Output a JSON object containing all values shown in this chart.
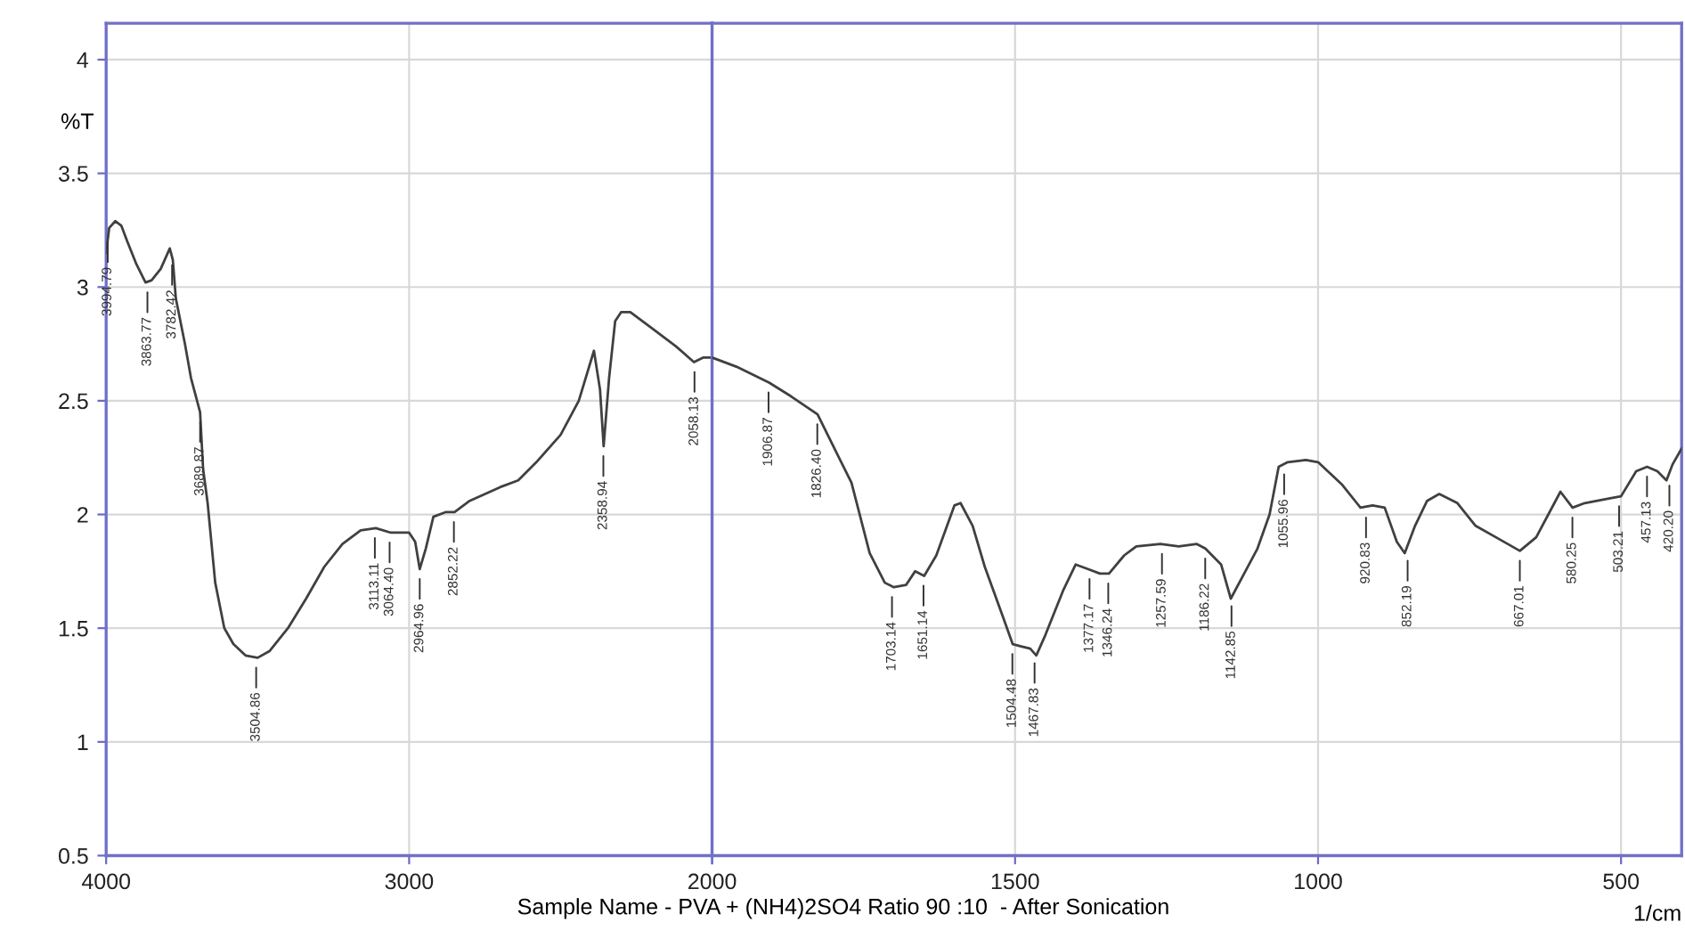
{
  "chart_data": [
    {
      "type": "line",
      "xlabel": "Sample Name - PVA + (NH4)2SO4 Ratio 90 :10  - After Sonication",
      "ylabel": "%T",
      "x": [
        4000,
        3990,
        3970,
        3950,
        3930,
        3900,
        3870,
        3850,
        3820,
        3790,
        3780,
        3770,
        3740,
        3720,
        3700,
        3690,
        3680,
        3665,
        3640,
        3610,
        3580,
        3540,
        3500,
        3460,
        3400,
        3340,
        3280,
        3220,
        3160,
        3110,
        3060,
        3000,
        2980,
        2965,
        2945,
        2920,
        2880,
        2850,
        2800,
        2700,
        2640,
        2580,
        2500,
        2440,
        2390,
        2370,
        2358,
        2340,
        2320,
        2300,
        2270,
        2200,
        2120,
        2060,
        2030,
        2000
      ],
      "series": [
        {
          "color": "#404040",
          "values": [
            3.15,
            3.26,
            3.29,
            3.27,
            3.2,
            3.1,
            3.02,
            3.03,
            3.08,
            3.17,
            3.12,
            2.95,
            2.75,
            2.6,
            2.5,
            2.45,
            2.2,
            2.05,
            1.7,
            1.5,
            1.43,
            1.38,
            1.37,
            1.4,
            1.5,
            1.63,
            1.77,
            1.87,
            1.93,
            1.94,
            1.92,
            1.92,
            1.88,
            1.76,
            1.85,
            1.99,
            2.01,
            2.01,
            2.06,
            2.12,
            2.15,
            2.23,
            2.35,
            2.5,
            2.72,
            2.55,
            2.3,
            2.6,
            2.85,
            2.89,
            2.89,
            2.82,
            2.74,
            2.67,
            2.69,
            2.69
          ]
        }
      ],
      "xlim": [
        4000,
        2000
      ],
      "xticks": [
        4000,
        3000,
        {
          "value": 2000,
          "label": null
        }
      ],
      "ylim": [
        0.5,
        4.16
      ],
      "yticks": [
        0.5,
        1,
        1.5,
        2,
        2.5,
        3,
        3.5,
        4
      ],
      "grid": true,
      "annotations": [
        {
          "text": "3994.79",
          "x": 3994.79,
          "y": 3.24
        },
        {
          "text": "3863.77",
          "x": 3863.77,
          "y": 3.02
        },
        {
          "text": "3782.42",
          "x": 3782.42,
          "y": 3.14
        },
        {
          "text": "3689.87",
          "x": 3689.87,
          "y": 2.45
        },
        {
          "text": "3504.86",
          "x": 3504.86,
          "y": 1.37
        },
        {
          "text": "3113.11",
          "x": 3113.11,
          "y": 1.94
        },
        {
          "text": "3064.40",
          "x": 3064.4,
          "y": 1.92
        },
        {
          "text": "2964.96",
          "x": 2964.96,
          "y": 1.76
        },
        {
          "text": "2852.22",
          "x": 2852.22,
          "y": 2.01
        },
        {
          "text": "2358.94",
          "x": 2358.94,
          "y": 2.3
        },
        {
          "text": "2058.13",
          "x": 2058.13,
          "y": 2.67
        }
      ]
    },
    {
      "type": "line",
      "x": [
        2000,
        1960,
        1906,
        1870,
        1826,
        1800,
        1770,
        1740,
        1715,
        1700,
        1680,
        1665,
        1650,
        1630,
        1600,
        1590,
        1570,
        1550,
        1520,
        1504,
        1490,
        1475,
        1465,
        1450,
        1420,
        1400,
        1380,
        1360,
        1345,
        1320,
        1300,
        1260,
        1230,
        1200,
        1186,
        1160,
        1144,
        1120,
        1100,
        1080,
        1065,
        1050,
        1020,
        1000,
        960,
        930,
        910,
        890,
        870,
        857,
        840,
        820,
        800,
        770,
        740,
        700,
        667,
        640,
        610,
        600,
        580,
        560,
        520,
        500,
        475,
        457,
        440,
        425,
        415,
        400
      ],
      "series": [
        {
          "color": "#404040",
          "values": [
            2.69,
            2.65,
            2.58,
            2.52,
            2.44,
            2.3,
            2.14,
            1.83,
            1.7,
            1.68,
            1.69,
            1.75,
            1.73,
            1.82,
            2.04,
            2.05,
            1.95,
            1.77,
            1.55,
            1.43,
            1.42,
            1.41,
            1.38,
            1.47,
            1.67,
            1.78,
            1.76,
            1.74,
            1.74,
            1.82,
            1.86,
            1.87,
            1.86,
            1.87,
            1.85,
            1.78,
            1.63,
            1.75,
            1.85,
            2.0,
            2.21,
            2.23,
            2.24,
            2.23,
            2.13,
            2.03,
            2.04,
            2.03,
            1.88,
            1.83,
            1.95,
            2.06,
            2.09,
            2.05,
            1.95,
            1.89,
            1.84,
            1.9,
            2.05,
            2.1,
            2.03,
            2.05,
            2.07,
            2.08,
            2.19,
            2.21,
            2.19,
            2.15,
            2.22,
            2.29
          ]
        }
      ],
      "xlim": [
        2000,
        400
      ],
      "xticks": [
        2000,
        1500,
        1000,
        500
      ],
      "ylim": [
        0.5,
        4.16
      ],
      "yticks": [
        0.5,
        1,
        1.5,
        2,
        2.5,
        3,
        3.5,
        4
      ],
      "tick_labels": "x",
      "grid": true,
      "annotations": [
        {
          "text": "1906.87",
          "x": 1906.87,
          "y": 2.58
        },
        {
          "text": "1826.40",
          "x": 1826.4,
          "y": 2.44
        },
        {
          "text": "1703.14",
          "x": 1703.14,
          "y": 1.68
        },
        {
          "text": "1651.14",
          "x": 1651.14,
          "y": 1.73
        },
        {
          "text": "1504.48",
          "x": 1504.48,
          "y": 1.43
        },
        {
          "text": "1467.83",
          "x": 1467.83,
          "y": 1.39
        },
        {
          "text": "1377.17",
          "x": 1377.17,
          "y": 1.76
        },
        {
          "text": "1346.24",
          "x": 1346.24,
          "y": 1.74
        },
        {
          "text": "1257.59",
          "x": 1257.59,
          "y": 1.87
        },
        {
          "text": "1186.22",
          "x": 1186.22,
          "y": 1.85
        },
        {
          "text": "1142.85",
          "x": 1142.85,
          "y": 1.64
        },
        {
          "text": "1055.96",
          "x": 1055.96,
          "y": 2.22
        },
        {
          "text": "920.83",
          "x": 920.83,
          "y": 2.03
        },
        {
          "text": "852.19",
          "x": 852.19,
          "y": 1.84
        },
        {
          "text": "667.01",
          "x": 667.01,
          "y": 1.84
        },
        {
          "text": "580.25",
          "x": 580.25,
          "y": 2.03
        },
        {
          "text": "503.21",
          "x": 503.21,
          "y": 2.08
        },
        {
          "text": "457.13",
          "x": 457.13,
          "y": 2.21
        },
        {
          "text": "420.20",
          "x": 420.2,
          "y": 2.17
        },
        "1/cm"
      ]
    }
  ]
}
